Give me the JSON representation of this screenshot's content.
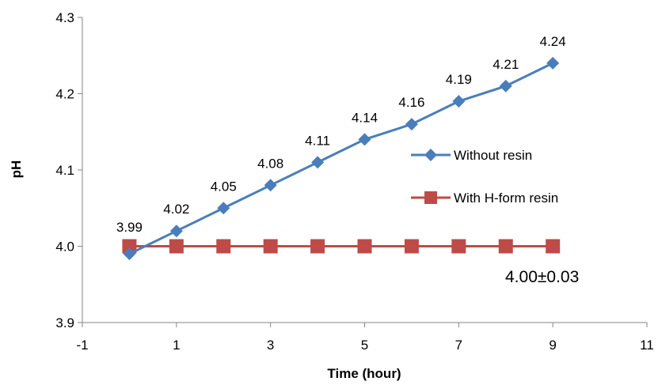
{
  "chart_data": {
    "type": "line",
    "xlabel": "Time (hour)",
    "ylabel": "pH",
    "xlim": [
      -1,
      11
    ],
    "ylim": [
      3.9,
      4.3
    ],
    "x_ticks": [
      -1,
      1,
      3,
      5,
      7,
      9,
      11
    ],
    "y_ticks": [
      "3.9",
      "4.0",
      "4.1",
      "4.2",
      "4.3"
    ],
    "grid": false,
    "legend_position": "right",
    "series": [
      {
        "name": "Without resin",
        "color": "#4a7ebb",
        "marker": "diamond",
        "x": [
          0,
          1,
          2,
          3,
          4,
          5,
          6,
          7,
          8,
          9
        ],
        "y": [
          3.99,
          4.02,
          4.05,
          4.08,
          4.11,
          4.14,
          4.16,
          4.19,
          4.21,
          4.24
        ],
        "data_labels": [
          "3.99",
          "4.02",
          "4.05",
          "4.08",
          "4.11",
          "4.14",
          "4.16",
          "4.19",
          "4.21",
          "4.24"
        ]
      },
      {
        "name": "With H-form resin",
        "color": "#be4b48",
        "marker": "square",
        "x": [
          0,
          1,
          2,
          3,
          4,
          5,
          6,
          7,
          8,
          9
        ],
        "y": [
          4.0,
          4.0,
          4.0,
          4.0,
          4.0,
          4.0,
          4.0,
          4.0,
          4.0,
          4.0
        ]
      }
    ],
    "annotation": "4.00±0.03"
  }
}
